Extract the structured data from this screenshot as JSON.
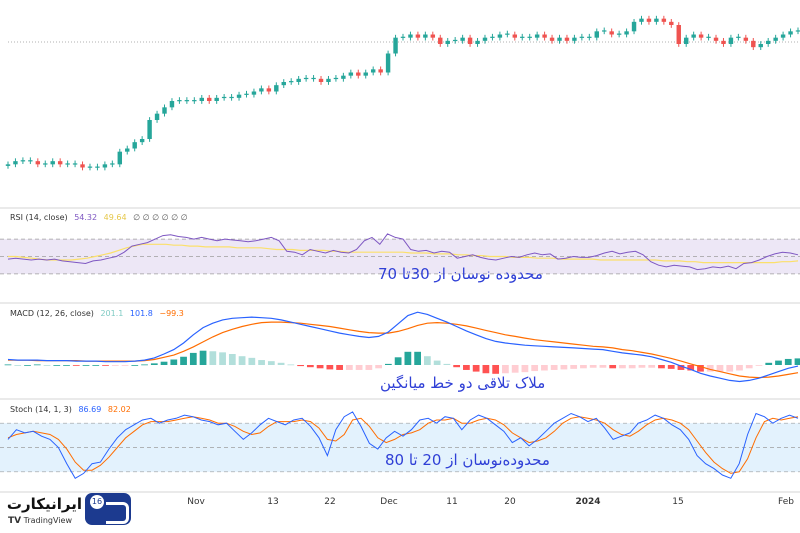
{
  "colors": {
    "up": "#26a69a",
    "down": "#ef5350",
    "rsi": "#7e57c2",
    "rsi_ma": "#fbe06b",
    "macd": "#2962ff",
    "signal": "#ff6d00",
    "stoch_k": "#2962ff",
    "stoch_d": "#ff6d00",
    "band_rsi": "#ede7f6",
    "band_stoch": "#e3f2fd",
    "note": "#2f3fd6"
  },
  "panels": {
    "rsi": {
      "label": "RSI (14, close)",
      "value1": "54.32",
      "value2": "49.64",
      "value3": "∅ ∅ ∅ ∅ ∅ ∅",
      "note": "محدوده نوسان از 30تا 70"
    },
    "macd": {
      "label": "MACD (12, 26, close)",
      "hist": "201.1",
      "macd": "101.8",
      "signal": "−99.3",
      "note": "ملاک تلاقی دو خط میانگین"
    },
    "stoch": {
      "label": "Stoch (14, 1, 3)",
      "k": "86.69",
      "d": "82.02",
      "note": "محدوده‌نوسان از 20 تا 80"
    }
  },
  "xaxis": {
    "ticks": [
      "Nov",
      "13",
      "22",
      "Dec",
      "11",
      "20",
      "2024",
      "15",
      "Feb"
    ]
  },
  "branding": {
    "badge": "16",
    "brand": "ایرانیکارت",
    "platform": "TradingView",
    "tv_mark": "TV"
  },
  "chart_data": [
    {
      "type": "candlestick",
      "title": "",
      "series": [
        {
          "name": "price",
          "close": [
            40,
            41,
            41,
            41,
            40,
            40,
            41,
            40,
            40,
            40,
            39,
            39,
            39,
            40,
            40,
            44,
            45,
            47,
            48,
            54,
            56,
            58,
            60,
            60,
            60,
            60,
            61,
            60,
            61,
            61,
            61,
            62,
            62,
            63,
            64,
            63,
            65,
            66,
            66,
            67,
            67,
            67,
            66,
            67,
            67,
            68,
            69,
            68,
            69,
            70,
            69,
            75,
            80,
            80,
            81,
            80,
            81,
            80,
            78,
            79,
            79,
            80,
            78,
            79,
            80,
            80,
            81,
            81,
            80,
            80,
            80,
            81,
            80,
            79,
            80,
            79,
            80,
            80,
            80,
            82,
            82,
            81,
            81,
            82,
            85,
            86,
            85,
            86,
            85,
            84,
            78,
            80,
            81,
            80,
            80,
            79,
            78,
            80,
            80,
            79,
            77,
            78,
            79,
            80,
            81,
            82,
            82
          ]
        }
      ]
    },
    {
      "type": "line",
      "title": "RSI (14, close)",
      "ylim": [
        0,
        100
      ],
      "bands": [
        30,
        70
      ],
      "series": [
        {
          "name": "RSI",
          "values": [
            47,
            48,
            47,
            46,
            47,
            46,
            47,
            45,
            44,
            43,
            42,
            45,
            46,
            48,
            50,
            55,
            62,
            64,
            66,
            70,
            74,
            75,
            73,
            72,
            70,
            72,
            70,
            68,
            70,
            69,
            68,
            67,
            68,
            70,
            72,
            68,
            56,
            55,
            52,
            58,
            56,
            54,
            57,
            55,
            54,
            58,
            68,
            72,
            64,
            76,
            72,
            70,
            58,
            56,
            57,
            54,
            56,
            55,
            48,
            50,
            52,
            49,
            47,
            46,
            48,
            50,
            49,
            52,
            54,
            52,
            53,
            47,
            48,
            50,
            49,
            49,
            51,
            54,
            56,
            53,
            55,
            56,
            52,
            44,
            40,
            38,
            40,
            39,
            38,
            35,
            36,
            38,
            37,
            39,
            36,
            42,
            43,
            46,
            50,
            53,
            55,
            54,
            52
          ]
        },
        {
          "name": "MA",
          "values": [
            50,
            50,
            49,
            48,
            47,
            46,
            46,
            46,
            46,
            47,
            48,
            50,
            52,
            54,
            57,
            60,
            62,
            64,
            64,
            64,
            64,
            63,
            63,
            62,
            62,
            61,
            61,
            61,
            61,
            60,
            60,
            60,
            60,
            59,
            58,
            58,
            58,
            57,
            57,
            57,
            57,
            56,
            56,
            55,
            55,
            55,
            55,
            55,
            55,
            55,
            55,
            54,
            54,
            54,
            53,
            53,
            53,
            52,
            52,
            51,
            51,
            50,
            50,
            50,
            49,
            49,
            49,
            48,
            48,
            48,
            47,
            47,
            47,
            47,
            47,
            46,
            46,
            46,
            46,
            46,
            46,
            46,
            46,
            45,
            45,
            45,
            44,
            44,
            43,
            43,
            43,
            43,
            43,
            43,
            43,
            43,
            43,
            43,
            44,
            44,
            45
          ]
        }
      ]
    },
    {
      "type": "line",
      "title": "MACD (12, 26, close)",
      "series": [
        {
          "name": "MACD",
          "values": [
            10,
            9,
            9,
            9,
            8,
            8,
            8,
            7,
            7,
            7,
            6,
            6,
            6,
            7,
            9,
            13,
            20,
            28,
            40,
            55,
            68,
            76,
            82,
            85,
            86,
            87,
            86,
            85,
            82,
            78,
            74,
            70,
            66,
            62,
            58,
            55,
            52,
            50,
            52,
            60,
            75,
            90,
            96,
            92,
            85,
            78,
            70,
            62,
            55,
            48,
            43,
            40,
            38,
            36,
            35,
            34,
            33,
            32,
            31,
            30,
            29,
            28,
            25,
            22,
            20,
            18,
            15,
            10,
            5,
            -2,
            -8,
            -15,
            -20,
            -24,
            -28,
            -30,
            -28,
            -24,
            -18,
            -12,
            -6,
            -2
          ]
        },
        {
          "name": "Signal",
          "values": [
            9,
            9,
            9,
            8,
            8,
            8,
            8,
            8,
            7,
            7,
            7,
            7,
            7,
            7,
            8,
            10,
            14,
            18,
            25,
            33,
            42,
            51,
            59,
            65,
            70,
            74,
            77,
            78,
            78,
            77,
            76,
            74,
            72,
            70,
            67,
            64,
            61,
            59,
            58,
            58,
            61,
            66,
            72,
            76,
            77,
            76,
            74,
            71,
            67,
            63,
            59,
            55,
            52,
            49,
            46,
            44,
            42,
            40,
            38,
            36,
            34,
            33,
            31,
            28,
            26,
            23,
            20,
            16,
            12,
            7,
            2,
            -3,
            -8,
            -12,
            -16,
            -20,
            -22,
            -23,
            -22,
            -20,
            -17,
            -14
          ]
        },
        {
          "name": "Histogram",
          "values": [
            1,
            0,
            0,
            1,
            0,
            0,
            0,
            -1,
            0,
            0,
            -1,
            -1,
            -1,
            0,
            1,
            3,
            6,
            10,
            15,
            22,
            26,
            25,
            23,
            20,
            16,
            13,
            9,
            7,
            4,
            1,
            -2,
            -4,
            -6,
            -8,
            -9,
            -9,
            -9,
            -9,
            -6,
            2,
            14,
            24,
            24,
            16,
            8,
            2,
            -4,
            -9,
            -12,
            -15,
            -16,
            -15,
            -14,
            -13,
            -11,
            -10,
            -9,
            -8,
            -7,
            -6,
            -5,
            -5,
            -6,
            -6,
            -6,
            -5,
            -5,
            -6,
            -7,
            -9,
            -10,
            -12,
            -12,
            -12,
            -12,
            -10,
            -6,
            -1,
            4,
            8,
            11,
            12
          ]
        }
      ]
    },
    {
      "type": "line",
      "title": "Stoch (14, 1, 3)",
      "ylim": [
        0,
        100
      ],
      "bands": [
        20,
        80
      ],
      "series": [
        {
          "name": "%K",
          "values": [
            60,
            72,
            68,
            70,
            64,
            60,
            50,
            30,
            12,
            18,
            30,
            32,
            48,
            62,
            72,
            78,
            84,
            86,
            80,
            84,
            86,
            90,
            88,
            84,
            82,
            78,
            80,
            70,
            60,
            68,
            78,
            86,
            82,
            78,
            84,
            86,
            76,
            62,
            40,
            72,
            88,
            94,
            76,
            55,
            48,
            62,
            70,
            64,
            72,
            84,
            86,
            80,
            88,
            86,
            72,
            84,
            90,
            86,
            78,
            70,
            56,
            62,
            52,
            60,
            70,
            80,
            86,
            92,
            88,
            82,
            86,
            74,
            60,
            64,
            68,
            80,
            84,
            90,
            86,
            78,
            72,
            60,
            40,
            30,
            24,
            16,
            12,
            30,
            66,
            92,
            88,
            80,
            86,
            90,
            86
          ]
        },
        {
          "name": "%D",
          "values": [
            62,
            66,
            68,
            70,
            68,
            66,
            60,
            48,
            32,
            22,
            22,
            28,
            38,
            50,
            62,
            70,
            78,
            82,
            82,
            82,
            84,
            86,
            88,
            86,
            84,
            80,
            80,
            76,
            70,
            66,
            68,
            76,
            82,
            82,
            82,
            84,
            82,
            74,
            60,
            58,
            66,
            84,
            86,
            76,
            62,
            56,
            60,
            66,
            68,
            72,
            80,
            84,
            84,
            86,
            80,
            80,
            84,
            86,
            84,
            78,
            68,
            62,
            56,
            58,
            62,
            70,
            80,
            86,
            88,
            86,
            84,
            80,
            72,
            66,
            64,
            70,
            78,
            84,
            86,
            84,
            80,
            72,
            58,
            44,
            32,
            24,
            18,
            20,
            36,
            62,
            82,
            86,
            84,
            86,
            88
          ]
        }
      ]
    }
  ]
}
